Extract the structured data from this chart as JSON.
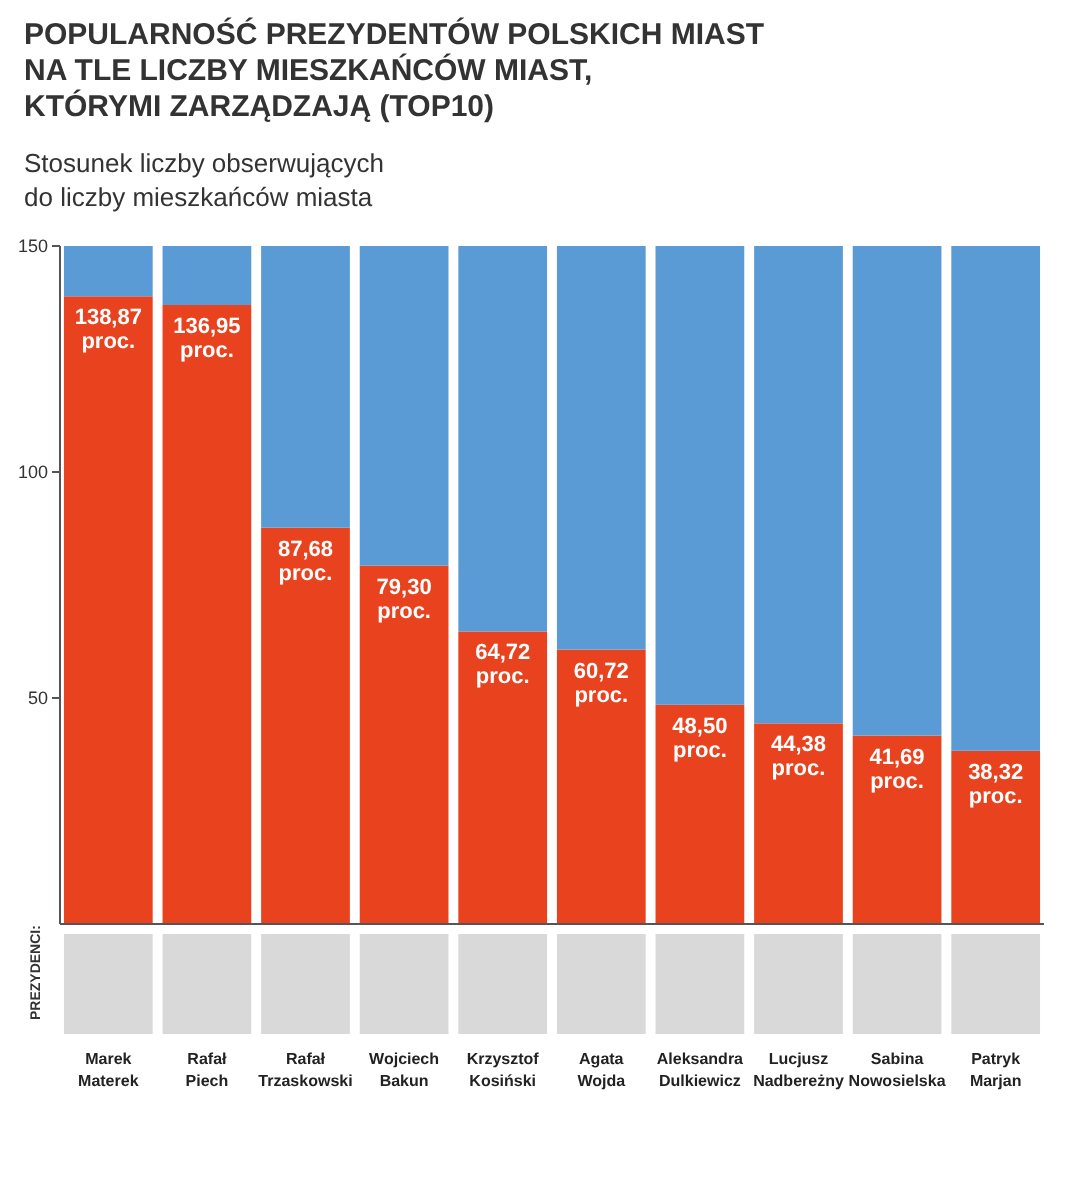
{
  "chart_data": {
    "type": "bar",
    "title": "POPULARNOŚĆ PREZYDENTÓW POLSKICH MIAST NA TLE LICZBY MIESZKAŃCÓW MIAST, KTÓRYMI ZARZĄDZAJĄ (TOP10)",
    "ylabel": "Stosunek liczby obserwujących do liczby mieszkańców miasta",
    "categories": [
      "Marek Materek",
      "Rafał Piech",
      "Rafał Trzaskowski",
      "Wojciech Bakun",
      "Krzysztof Kosiński",
      "Agata Wojda",
      "Aleksandra Dulkiewicz",
      "Lucjusz Nadbereżny",
      "Sabina Nowosielska",
      "Patryk Marjan"
    ],
    "stacked": true,
    "series": [
      {
        "color": "#e8431e",
        "values": [
          138.87,
          136.95,
          87.68,
          79.3,
          64.72,
          60.72,
          48.5,
          44.38,
          41.69,
          38.32
        ],
        "value_labels": [
          "138,87 proc.",
          "136,95 proc.",
          "87,68 proc.",
          "79,30 proc.",
          "64,72 proc.",
          "60,72 proc.",
          "48,50 proc.",
          "44,38 proc.",
          "41,69 proc.",
          "38,32 proc."
        ]
      },
      {
        "color": "#5b9bd5",
        "values": [
          11.13,
          13.05,
          62.32,
          70.7,
          85.28,
          89.28,
          101.5,
          105.62,
          108.31,
          111.68
        ]
      }
    ],
    "ylim": [
      0,
      150
    ],
    "yticks": [
      50,
      100,
      150
    ],
    "annotations": [
      "PREZYDENCI:"
    ]
  }
}
